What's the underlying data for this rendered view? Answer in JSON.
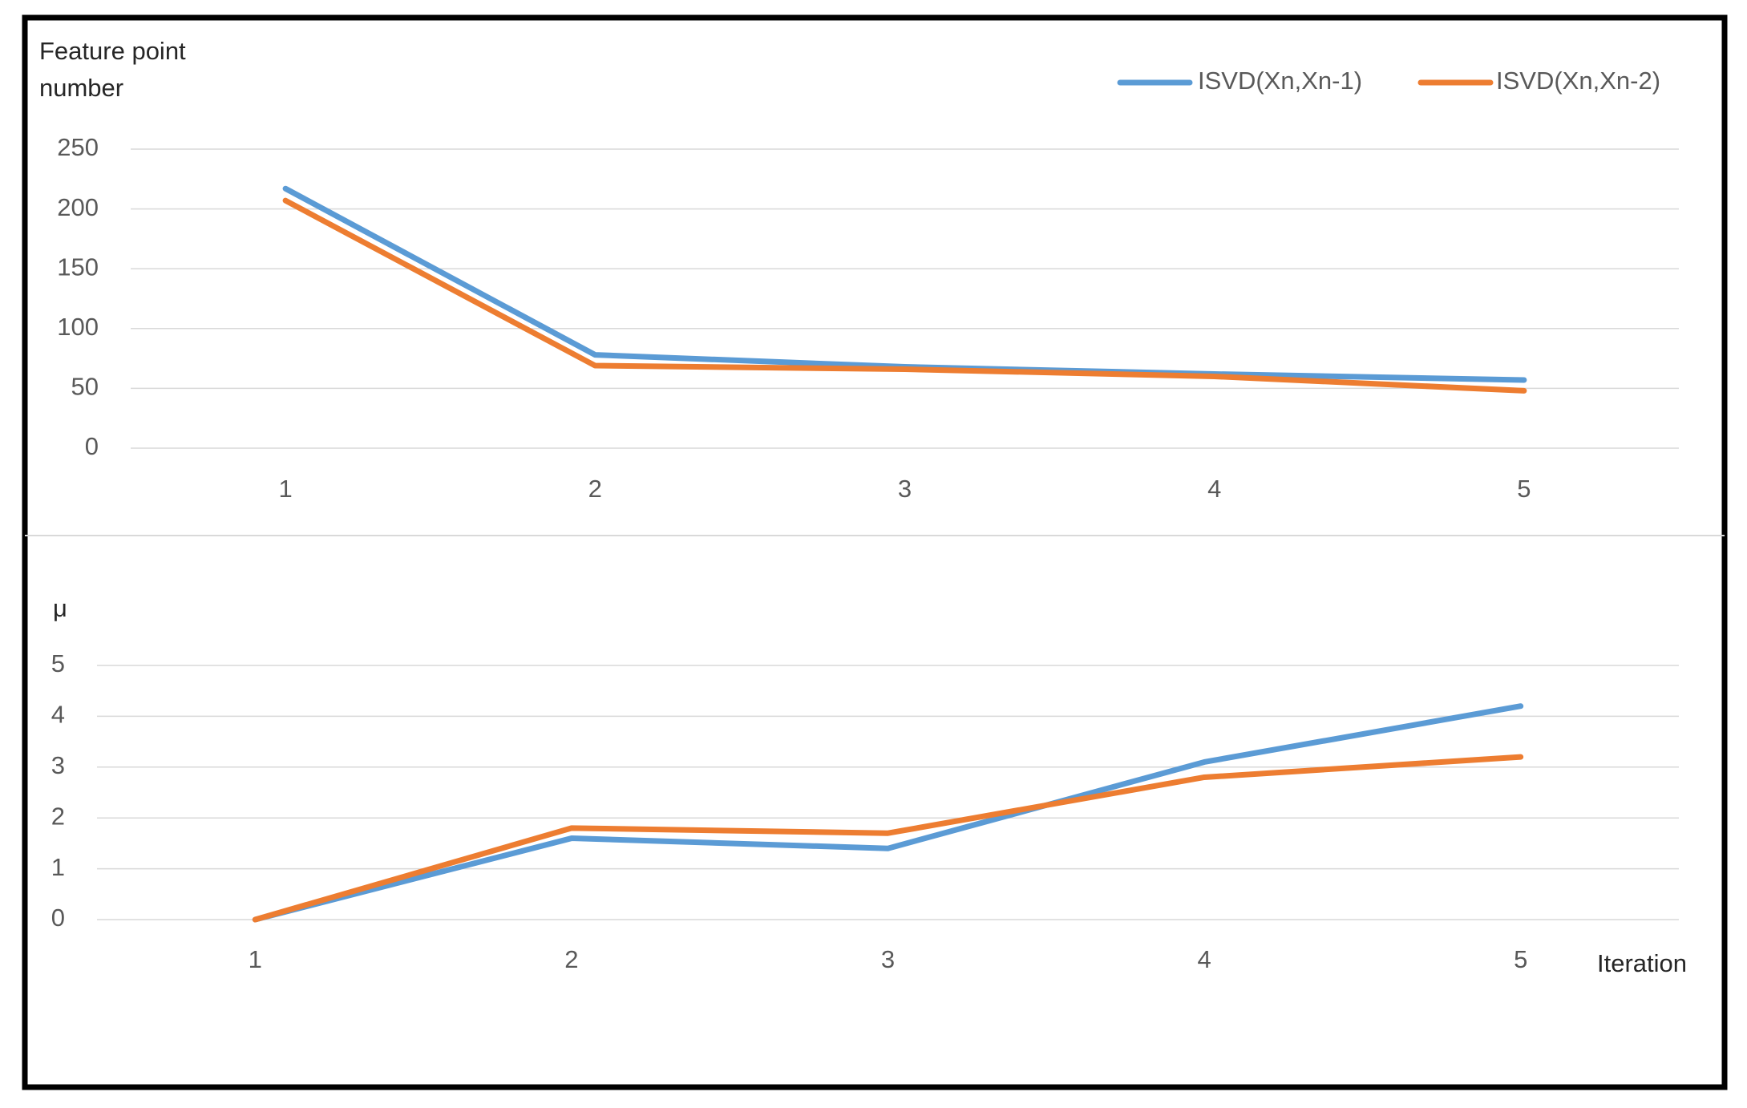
{
  "chart_data": [
    {
      "type": "line",
      "y_label": "Feature point number",
      "categories": [
        "1",
        "2",
        "3",
        "4",
        "5"
      ],
      "series": [
        {
          "name": "ISVD(Xn,Xn-1)",
          "color": "#5b9bd5",
          "values": [
            217,
            78,
            68,
            62,
            57
          ]
        },
        {
          "name": "ISVD(Xn,Xn-2)",
          "color": "#ed7d31",
          "values": [
            207,
            69,
            66,
            60,
            48
          ]
        }
      ],
      "ylim": [
        0,
        250
      ],
      "yticks": [
        0,
        50,
        100,
        150,
        200,
        250
      ],
      "grid": true,
      "legend": "top-right"
    },
    {
      "type": "line",
      "y_label": "μ",
      "x_label": "Iteration",
      "categories": [
        "1",
        "2",
        "3",
        "4",
        "5"
      ],
      "series": [
        {
          "color": "#5b9bd5",
          "values": [
            0,
            1.6,
            1.4,
            3.1,
            4.2
          ]
        },
        {
          "color": "#ed7d31",
          "values": [
            0,
            1.8,
            1.7,
            2.8,
            3.2
          ]
        }
      ],
      "ylim": [
        0,
        5
      ],
      "yticks": [
        0,
        1,
        2,
        3,
        4,
        5
      ],
      "grid": true
    }
  ]
}
